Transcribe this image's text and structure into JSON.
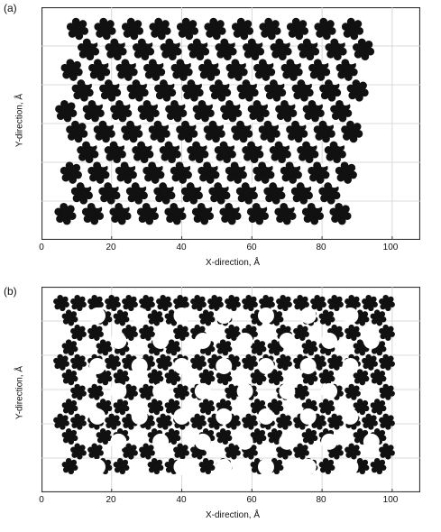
{
  "chart_data": [
    {
      "type": "scatter",
      "panel": "(a)",
      "xlabel": "X-direction, Å",
      "ylabel": "Y-direction, Å",
      "xticks": [
        0,
        20,
        40,
        60,
        80,
        100
      ],
      "xlim": [
        0,
        108
      ],
      "grid": true,
      "motif": "dense close-packed molecular clusters"
    },
    {
      "type": "scatter",
      "panel": "(b)",
      "xlabel": "X-direction, Å",
      "ylabel": "Y-direction, Å",
      "xticks": [
        0,
        20,
        40,
        60,
        80,
        100
      ],
      "xlim": [
        0,
        108
      ],
      "grid": true,
      "motif": "hexagonal porous network"
    }
  ],
  "colors": {
    "marker": "#111111",
    "grid": "#cfcfcf",
    "frame": "#333333"
  }
}
